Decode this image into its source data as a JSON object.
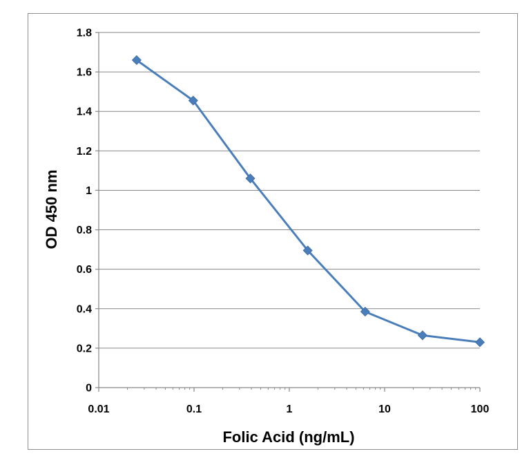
{
  "chart_data": {
    "type": "line",
    "title": "",
    "xlabel": "Folic Acid (ng/mL)",
    "ylabel": "OD 450 nm",
    "x_scale": "log",
    "xlim": [
      0.01,
      100
    ],
    "ylim": [
      0,
      1.8
    ],
    "x_ticks": [
      0.01,
      0.1,
      1,
      10,
      100
    ],
    "x_tick_labels": [
      "0.01",
      "0.1",
      "1",
      "10",
      "100"
    ],
    "y_ticks": [
      0,
      0.2,
      0.4,
      0.6,
      0.8,
      1,
      1.2,
      1.4,
      1.6,
      1.8
    ],
    "y_tick_labels": [
      "0",
      "0.2",
      "0.4",
      "0.6",
      "0.8",
      "1",
      "1.2",
      "1.4",
      "1.6",
      "1.8"
    ],
    "grid": "horizontal",
    "legend": "none",
    "series": [
      {
        "color": "#4a7ebb",
        "marker": "diamond",
        "x": [
          0.025,
          0.098,
          0.39,
          1.56,
          6.25,
          25,
          100
        ],
        "y": [
          1.66,
          1.455,
          1.06,
          0.695,
          0.385,
          0.265,
          0.23
        ]
      }
    ]
  }
}
